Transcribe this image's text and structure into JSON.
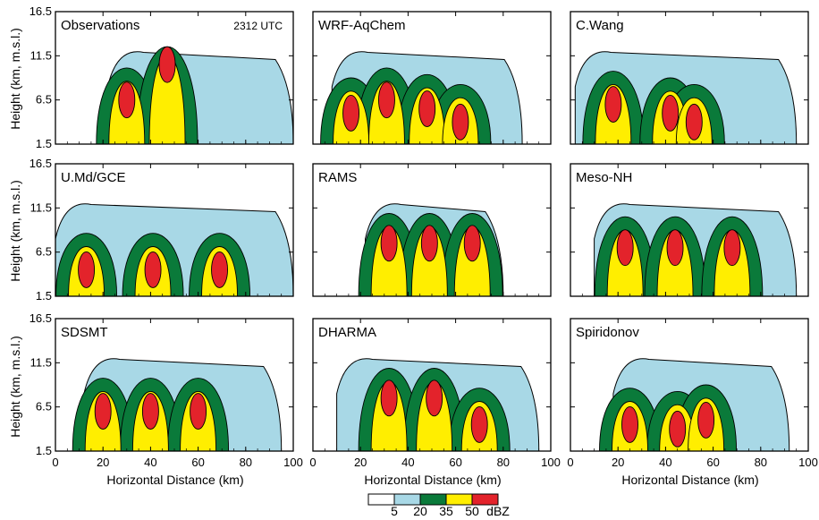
{
  "figure": {
    "y_axis_title": "Height (km, m.s.l.)",
    "x_axis_title": "Horizontal Distance (km)"
  },
  "colorbar": {
    "unit": "dBZ",
    "ticks": [
      "5",
      "20",
      "35",
      "50"
    ],
    "colors": [
      "#ffffff",
      "#a8d8e6",
      "#0a7a3a",
      "#ffee00",
      "#e3232b"
    ]
  },
  "chart_data": {
    "type": "heatmap",
    "description_of_levels_dBZ": [
      5,
      20,
      35,
      50
    ],
    "x_ticks": [
      0,
      20,
      40,
      60,
      80,
      100
    ],
    "y_ticks": [
      1.5,
      6.5,
      11.5,
      16.5
    ],
    "xlim": [
      0,
      100
    ],
    "ylim": [
      1.5,
      16.5
    ],
    "panels": [
      {
        "label": "Observations",
        "time": "2312 UTC",
        "cells": [
          {
            "x": 30,
            "y": 6.5
          },
          {
            "x": 47,
            "y": 10.5
          }
        ],
        "outer_extent": [
          22,
          100
        ]
      },
      {
        "label": "WRF-AqChem",
        "cells": [
          {
            "x": 16,
            "y": 5
          },
          {
            "x": 31,
            "y": 6.5
          },
          {
            "x": 48,
            "y": 5.5
          },
          {
            "x": 62,
            "y": 4
          }
        ],
        "outer_extent": [
          8,
          88
        ]
      },
      {
        "label": "C.Wang",
        "cells": [
          {
            "x": 18,
            "y": 6
          },
          {
            "x": 42,
            "y": 5
          },
          {
            "x": 52,
            "y": 4
          }
        ],
        "outer_extent": [
          2,
          95
        ]
      },
      {
        "label": "U.Md/GCE",
        "cells": [
          {
            "x": 13,
            "y": 4.5
          },
          {
            "x": 41,
            "y": 4.5
          },
          {
            "x": 69,
            "y": 4.5
          }
        ],
        "outer_extent": [
          0,
          100
        ]
      },
      {
        "label": "RAMS",
        "cells": [
          {
            "x": 32,
            "y": 7.5
          },
          {
            "x": 49,
            "y": 7.5
          },
          {
            "x": 67,
            "y": 7.5
          }
        ],
        "outer_extent": [
          22,
          80
        ]
      },
      {
        "label": "Meso-NH",
        "cells": [
          {
            "x": 23,
            "y": 7
          },
          {
            "x": 44,
            "y": 7
          },
          {
            "x": 68,
            "y": 7
          }
        ],
        "outer_extent": [
          10,
          95
        ]
      },
      {
        "label": "SDSMT",
        "cells": [
          {
            "x": 20,
            "y": 6
          },
          {
            "x": 40,
            "y": 6
          },
          {
            "x": 60,
            "y": 6
          }
        ],
        "outer_extent": [
          12,
          95
        ]
      },
      {
        "label": "DHARMA",
        "cells": [
          {
            "x": 32,
            "y": 7.5
          },
          {
            "x": 51,
            "y": 7.5
          },
          {
            "x": 70,
            "y": 4.5
          }
        ],
        "outer_extent": [
          10,
          95
        ]
      },
      {
        "label": "Spiridonov",
        "cells": [
          {
            "x": 25,
            "y": 4.5
          },
          {
            "x": 45,
            "y": 4
          },
          {
            "x": 57,
            "y": 5
          }
        ],
        "outer_extent": [
          18,
          92
        ]
      }
    ]
  }
}
